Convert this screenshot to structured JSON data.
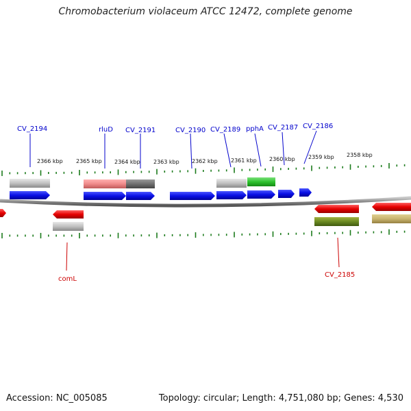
{
  "title": "Chromobacterium violaceum ATCC 12472, complete genome",
  "footer": {
    "accession": "Accession: NC_005085",
    "summary": "Topology: circular; Length: 4,751,080 bp; Genes: 4,530"
  },
  "kbp_labels": [
    "2366 kbp",
    "2365 kbp",
    "2364 kbp",
    "2363 kbp",
    "2362 kbp",
    "2361 kbp",
    "2360 kbp",
    "2359 kbp",
    "2358 kbp"
  ],
  "gene_labels_forward": [
    "CV_2194",
    "rluD",
    "CV_2191",
    "CV_2190",
    "CV_2189",
    "pphA",
    "CV_2187",
    "CV_2186"
  ],
  "gene_labels_reverse": [
    "comL",
    "CV_2185"
  ],
  "colors": {
    "forward_label": "#0000cc",
    "reverse_label": "#cc0000",
    "forward_gene": "#0a10e6",
    "reverse_gene": "#e60000",
    "tick": "#1a7a1a",
    "backbone": "#888888"
  }
}
